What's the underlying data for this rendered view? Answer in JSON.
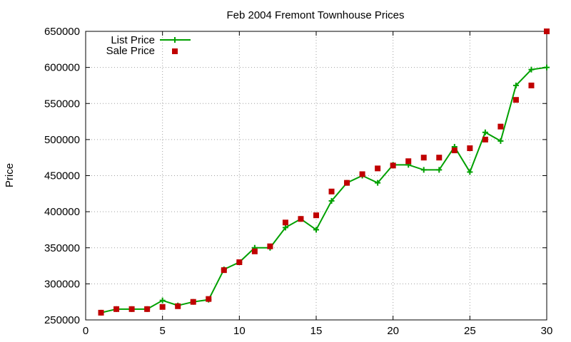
{
  "chart_data": {
    "type": "line",
    "title": "Feb 2004 Fremont Townhouse Prices",
    "xlabel": "",
    "ylabel": "Price",
    "xlim": [
      0,
      30
    ],
    "ylim": [
      250000,
      650000
    ],
    "x_ticks": [
      "0",
      "5",
      "10",
      "15",
      "20",
      "25",
      "30"
    ],
    "y_ticks": [
      "250000",
      "300000",
      "350000",
      "400000",
      "450000",
      "500000",
      "550000",
      "600000",
      "650000"
    ],
    "grid": true,
    "legend_position": "top-left",
    "series": [
      {
        "name": "List Price",
        "style": "line-with-plus-markers",
        "color": "#00a000",
        "x": [
          1,
          2,
          3,
          4,
          5,
          6,
          7,
          8,
          9,
          10,
          11,
          12,
          13,
          14,
          15,
          16,
          17,
          18,
          19,
          20,
          21,
          22,
          23,
          24,
          25,
          26,
          27,
          28,
          29,
          30
        ],
        "y": [
          260000,
          265000,
          265000,
          265000,
          277000,
          270000,
          275000,
          278000,
          320000,
          330000,
          350000,
          350000,
          378000,
          390000,
          375000,
          415000,
          440000,
          450000,
          440000,
          465000,
          465000,
          458000,
          458000,
          490000,
          455000,
          510000,
          498000,
          575000,
          597000,
          600000
        ]
      },
      {
        "name": "Sale Price",
        "style": "square-markers",
        "color": "#c00000",
        "x": [
          1,
          2,
          3,
          4,
          5,
          6,
          7,
          8,
          9,
          10,
          11,
          12,
          13,
          14,
          15,
          16,
          17,
          18,
          19,
          20,
          21,
          22,
          23,
          24,
          25,
          26,
          27,
          28,
          29,
          30
        ],
        "y": [
          260000,
          265000,
          265000,
          265000,
          268000,
          269000,
          275000,
          279000,
          319000,
          330000,
          345000,
          352000,
          385000,
          390000,
          395000,
          428000,
          440000,
          452000,
          460000,
          464000,
          470000,
          475000,
          475000,
          485000,
          488000,
          500000,
          518000,
          555000,
          575000,
          650000
        ]
      }
    ]
  }
}
